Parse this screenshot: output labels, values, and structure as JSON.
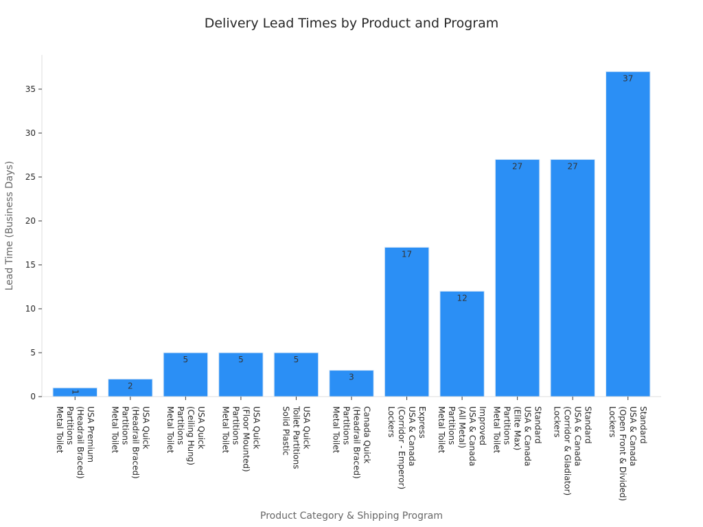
{
  "chart_data": {
    "type": "bar",
    "title": "Delivery Lead Times by Product and Program",
    "xlabel": "Product Category & Shipping Program",
    "ylabel": "Lead Time (Business Days)",
    "ylim": [
      0,
      38.9
    ],
    "yticks": [
      0,
      5,
      10,
      15,
      20,
      25,
      30,
      35
    ],
    "grid": false,
    "bar_color": "#2b8ff5",
    "categories": [
      "Metal Toilet\nPartitions\n(Headrail Braced)\nUSA Premium",
      "Metal Toilet\nPartitions\n(Headrail Braced)\nUSA Quick",
      "Metal Toilet\nPartitions\n(Ceiling Hung)\nUSA Quick",
      "Metal Toilet\nPartitions\n(Floor Mounted)\nUSA Quick",
      "Solid Plastic\nToilet Partitions\nUSA Quick",
      "Metal Toilet\nPartitions\n(Headrail Braced)\nCanada Quick",
      "Lockers\n(Corridor - Emperor)\nUSA & Canada\nExpress",
      "Metal Toilet\nPartitions\n(All Metal)\nUSA & Canada\nImproved",
      "Metal Toilet\nPartitions\n(Elite Max)\nUSA & Canada\nStandard",
      "Lockers\n(Corridor & Gladiator)\nUSA & Canada\nStandard",
      "Lockers\n(Open Front & Divided)\nUSA & Canada\nStandard"
    ],
    "values": [
      1,
      2,
      5,
      5,
      5,
      3,
      17,
      12,
      27,
      27,
      37
    ]
  }
}
